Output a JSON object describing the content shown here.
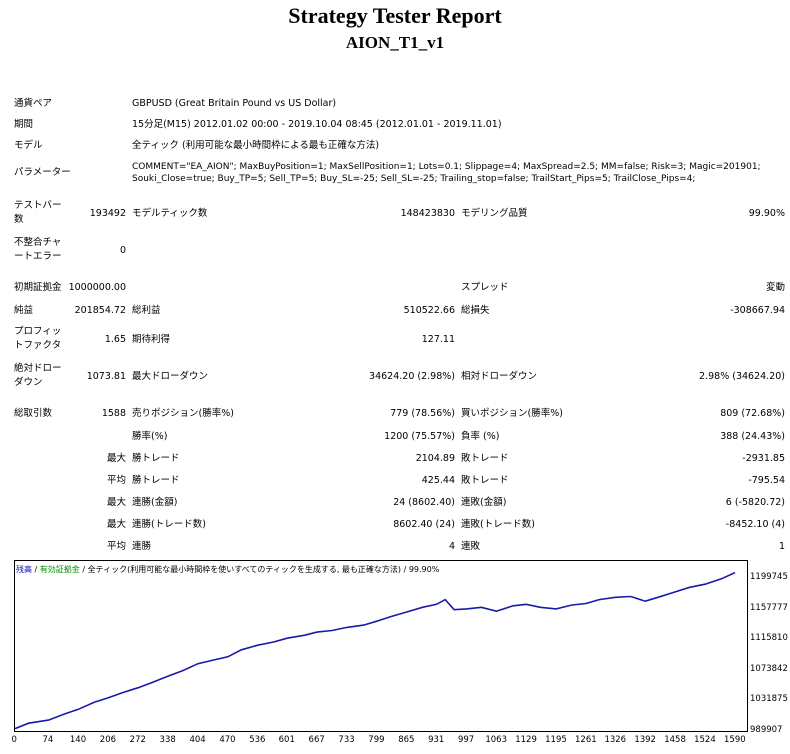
{
  "header": {
    "title": "Strategy Tester Report",
    "subtitle": "AION_T1_v1"
  },
  "rows": {
    "pair_label": "通貨ペア",
    "pair_value": "GBPUSD (Great Britain Pound vs US Dollar)",
    "period_label": "期間",
    "period_value": "15分足(M15) 2012.01.02 00:00 - 2019.10.04 08:45 (2012.01.01 - 2019.11.01)",
    "model_label": "モデル",
    "model_value": "全ティック (利用可能な最小時間枠による最も正確な方法)",
    "param_label": "パラメーター",
    "param_line1": "COMMENT=\"EA_AION\"; MaxBuyPosition=1; MaxSellPosition=1; Lots=0.1; Slippage=4; MaxSpread=2.5; MM=false; Risk=3; Magic=201901;",
    "param_line2": "Souki_Close=true; Buy_TP=5; Sell_TP=5; Buy_SL=-25; Sell_SL=-25; Trailing_stop=false; TrailStart_Pips=5; TrailClose_Pips=4;",
    "bars_label1": "テストバー",
    "bars_label2": "数",
    "bars_value": "193492",
    "ticks_label": "モデルティック数",
    "ticks_value": "148423830",
    "quality_label": "モデリング品質",
    "quality_value": "99.90%",
    "mismatch_label1": "不整合チャ",
    "mismatch_label2": "ートエラー",
    "mismatch_value": "0",
    "deposit_label": "初期証拠金",
    "deposit_value": "1000000.00",
    "spread_label": "スプレッド",
    "spread_value": "変動",
    "net_label": "純益",
    "net_value": "201854.72",
    "gross_profit_label": "総利益",
    "gross_profit_value": "510522.66",
    "gross_loss_label": "総損失",
    "gross_loss_value": "-308667.94",
    "pf_label1": "プロフィッ",
    "pf_label2": "トファクタ",
    "pf_value": "1.65",
    "expected_label": "期待利得",
    "expected_value": "127.11",
    "abs_dd_label1": "絶対ドロー",
    "abs_dd_label2": "ダウン",
    "abs_dd_value": "1073.81",
    "max_dd_label": "最大ドローダウン",
    "max_dd_value": "34624.20 (2.98%)",
    "rel_dd_label": "相対ドローダウン",
    "rel_dd_value": "2.98% (34624.20)",
    "trades_label": "総取引数",
    "trades_value": "1588",
    "short_label": "売りポジション(勝率%)",
    "short_value": "779 (78.56%)",
    "long_label": "買いポジション(勝率%)",
    "long_value": "809 (72.68%)",
    "win_label": "勝率(%)",
    "win_value": "1200 (75.57%)",
    "loss_label": "負率 (%)",
    "loss_value": "388 (24.43%)",
    "max1": "最大",
    "largest_win_label": "勝トレード",
    "largest_win_value": "2104.89",
    "largest_loss_label": "敗トレード",
    "largest_loss_value": "-2931.85",
    "avg1": "平均",
    "avg_win_label": "勝トレード",
    "avg_win_value": "425.44",
    "avg_loss_label": "敗トレード",
    "avg_loss_value": "-795.54",
    "max2": "最大",
    "cw_label": "連勝(金額)",
    "cw_value": "24 (8602.40)",
    "cl_label": "連敗(金額)",
    "cl_value": "6 (-5820.72)",
    "max3": "最大",
    "cwp_label": "連勝(トレード数)",
    "cwp_value": "8602.40 (24)",
    "clp_label": "連敗(トレード数)",
    "clp_value": "-8452.10 (4)",
    "avg2": "平均",
    "acw_label": "連勝",
    "acw_value": "4",
    "acl_label": "連敗",
    "acl_value": "1"
  },
  "chart_legend": {
    "balance": "残高",
    "equity": "有効証拠金",
    "model": "全ティック(利用可能な最小時間枠を使いすべてのティックを生成する, 最も正確な方法)",
    "quality": "99.90%"
  },
  "chart_data": {
    "type": "line",
    "title": "",
    "xlabel": "",
    "ylabel": "",
    "x_ticks": [
      "0",
      "74",
      "140",
      "206",
      "272",
      "338",
      "404",
      "470",
      "536",
      "601",
      "667",
      "733",
      "799",
      "865",
      "931",
      "997",
      "1063",
      "1129",
      "1195",
      "1261",
      "1326",
      "1392",
      "1458",
      "1524",
      "1590"
    ],
    "y_ticks": [
      "1199745",
      "1157777",
      "1115810",
      "1073842",
      "1031875",
      "989907"
    ],
    "xlim": [
      0,
      1590
    ],
    "ylim": [
      989907,
      1210000
    ],
    "series": [
      {
        "name": "",
        "color": "#1a1aa6",
        "x": [
          0,
          30,
          74,
          110,
          140,
          175,
          206,
          240,
          272,
          300,
          338,
          370,
          404,
          440,
          470,
          500,
          536,
          570,
          601,
          640,
          667,
          700,
          733,
          770,
          799,
          830,
          865,
          900,
          931,
          950,
          970,
          997,
          1030,
          1063,
          1100,
          1129,
          1160,
          1195,
          1230,
          1261,
          1290,
          1326,
          1360,
          1392,
          1420,
          1458,
          1490,
          1524,
          1560,
          1590
        ],
        "y": [
          993000,
          1000000,
          1004000,
          1012000,
          1018000,
          1027000,
          1033000,
          1040000,
          1046000,
          1052000,
          1061000,
          1068000,
          1077000,
          1082000,
          1086000,
          1095000,
          1101000,
          1105000,
          1110000,
          1114000,
          1118000,
          1120000,
          1124000,
          1127000,
          1132000,
          1138000,
          1144000,
          1150000,
          1154000,
          1160000,
          1147000,
          1148000,
          1150000,
          1145000,
          1152000,
          1154000,
          1150000,
          1148000,
          1153000,
          1155000,
          1160000,
          1163000,
          1164000,
          1158000,
          1163000,
          1170000,
          1176000,
          1180000,
          1187000,
          1195000
        ]
      }
    ]
  }
}
